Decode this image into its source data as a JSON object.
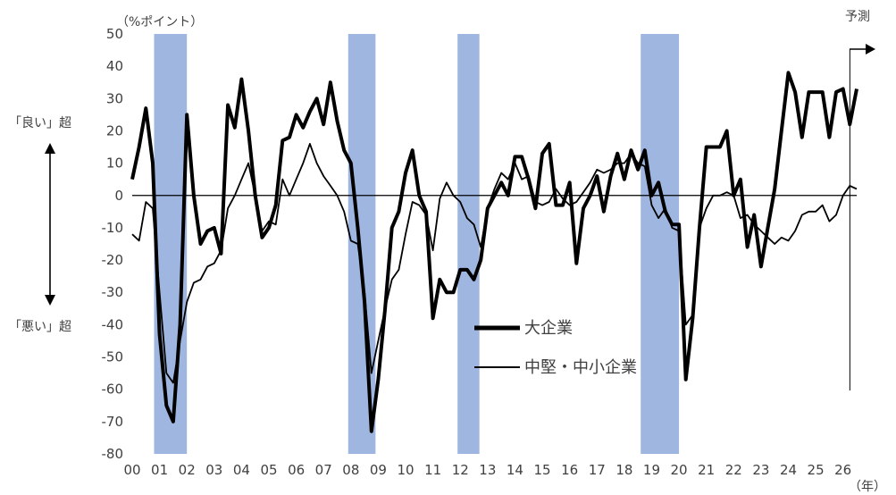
{
  "chart_data": {
    "type": "line",
    "y_unit": "（%ポイント）",
    "x_unit": "（年）",
    "forecast_label": "予測",
    "side_label_top": "「良い」超",
    "side_label_bottom": "「悪い」超",
    "ylim": [
      -80,
      50
    ],
    "y_ticks": [
      50,
      40,
      30,
      20,
      10,
      0,
      -10,
      -20,
      -30,
      -40,
      -50,
      -60,
      -70,
      -80
    ],
    "x_tick_labels": [
      "00",
      "01",
      "02",
      "03",
      "04",
      "05",
      "06",
      "07",
      "08",
      "09",
      "10",
      "11",
      "12",
      "13",
      "14",
      "15",
      "16",
      "17",
      "18",
      "19",
      "20",
      "21",
      "22",
      "23",
      "24",
      "25",
      "26"
    ],
    "recession_shading": [
      [
        0.8,
        2.0
      ],
      [
        7.9,
        8.9
      ],
      [
        11.9,
        12.7
      ],
      [
        18.6,
        20.0
      ]
    ],
    "forecast_start": 26.25,
    "series": [
      {
        "name": "大企業",
        "style": "thick",
        "points": [
          [
            0,
            5
          ],
          [
            0.25,
            15
          ],
          [
            0.5,
            27
          ],
          [
            0.75,
            10
          ],
          [
            1.0,
            -43
          ],
          [
            1.25,
            -65
          ],
          [
            1.5,
            -70
          ],
          [
            1.75,
            -40
          ],
          [
            2.0,
            25
          ],
          [
            2.25,
            0
          ],
          [
            2.5,
            -15
          ],
          [
            2.75,
            -11
          ],
          [
            3.0,
            -10
          ],
          [
            3.25,
            -18
          ],
          [
            3.5,
            28
          ],
          [
            3.75,
            21
          ],
          [
            4.0,
            36
          ],
          [
            4.25,
            20
          ],
          [
            4.5,
            0
          ],
          [
            4.75,
            -13
          ],
          [
            5.0,
            -10
          ],
          [
            5.25,
            -3
          ],
          [
            5.5,
            17
          ],
          [
            5.75,
            18
          ],
          [
            6.0,
            25
          ],
          [
            6.25,
            21
          ],
          [
            6.5,
            26
          ],
          [
            6.75,
            30
          ],
          [
            7.0,
            22
          ],
          [
            7.25,
            35
          ],
          [
            7.5,
            23
          ],
          [
            7.75,
            14
          ],
          [
            8.0,
            10
          ],
          [
            8.25,
            -10
          ],
          [
            8.5,
            -33
          ],
          [
            8.75,
            -73
          ],
          [
            9.0,
            -57
          ],
          [
            9.25,
            -35
          ],
          [
            9.5,
            -10
          ],
          [
            9.75,
            -5
          ],
          [
            10.0,
            7
          ],
          [
            10.25,
            14
          ],
          [
            10.5,
            0
          ],
          [
            10.75,
            -5
          ],
          [
            11.0,
            -38
          ],
          [
            11.25,
            -26
          ],
          [
            11.5,
            -30
          ],
          [
            11.75,
            -30
          ],
          [
            12.0,
            -23
          ],
          [
            12.25,
            -23
          ],
          [
            12.5,
            -26
          ],
          [
            12.75,
            -20
          ],
          [
            13.0,
            -4
          ],
          [
            13.25,
            0
          ],
          [
            13.5,
            4
          ],
          [
            13.75,
            0
          ],
          [
            14.0,
            12
          ],
          [
            14.25,
            12
          ],
          [
            14.5,
            5
          ],
          [
            14.75,
            -4
          ],
          [
            15.0,
            13
          ],
          [
            15.25,
            16
          ],
          [
            15.5,
            -3
          ],
          [
            15.75,
            -3
          ],
          [
            16.0,
            4
          ],
          [
            16.25,
            -21
          ],
          [
            16.5,
            -4
          ],
          [
            16.75,
            0
          ],
          [
            17.0,
            6
          ],
          [
            17.25,
            -5
          ],
          [
            17.5,
            6
          ],
          [
            17.75,
            13
          ],
          [
            18.0,
            5
          ],
          [
            18.25,
            14
          ],
          [
            18.5,
            8
          ],
          [
            18.75,
            14
          ],
          [
            19.0,
            0
          ],
          [
            19.25,
            4
          ],
          [
            19.5,
            -5
          ],
          [
            19.75,
            -9
          ],
          [
            20.0,
            -9
          ],
          [
            20.25,
            -57
          ],
          [
            20.5,
            -38
          ],
          [
            20.75,
            -10
          ],
          [
            21.0,
            15
          ],
          [
            21.25,
            15
          ],
          [
            21.5,
            15
          ],
          [
            21.75,
            20
          ],
          [
            22.0,
            0
          ],
          [
            22.25,
            5
          ],
          [
            22.5,
            -16
          ],
          [
            22.75,
            -6
          ],
          [
            23.0,
            -22
          ],
          [
            23.25,
            -10
          ],
          [
            23.5,
            2
          ],
          [
            23.75,
            20
          ],
          [
            24.0,
            38
          ],
          [
            24.25,
            32
          ],
          [
            24.5,
            18
          ],
          [
            24.75,
            32
          ],
          [
            25.0,
            32
          ],
          [
            25.25,
            32
          ],
          [
            25.5,
            18
          ],
          [
            25.75,
            32
          ],
          [
            26.0,
            33
          ],
          [
            26.25,
            22
          ],
          [
            26.5,
            33
          ]
        ]
      },
      {
        "name": "中堅・中小企業",
        "style": "thin",
        "points": [
          [
            0,
            -12
          ],
          [
            0.25,
            -14
          ],
          [
            0.5,
            -2
          ],
          [
            0.75,
            -4
          ],
          [
            1.0,
            -30
          ],
          [
            1.25,
            -55
          ],
          [
            1.5,
            -58
          ],
          [
            1.75,
            -45
          ],
          [
            2.0,
            -33
          ],
          [
            2.25,
            -27
          ],
          [
            2.5,
            -26
          ],
          [
            2.75,
            -22
          ],
          [
            3.0,
            -21
          ],
          [
            3.25,
            -17
          ],
          [
            3.5,
            -4
          ],
          [
            3.75,
            0
          ],
          [
            4.0,
            5
          ],
          [
            4.25,
            10
          ],
          [
            4.5,
            0
          ],
          [
            4.75,
            -11
          ],
          [
            5.0,
            -8
          ],
          [
            5.25,
            -9
          ],
          [
            5.5,
            5
          ],
          [
            5.75,
            0
          ],
          [
            6.0,
            5
          ],
          [
            6.25,
            10
          ],
          [
            6.5,
            16
          ],
          [
            6.75,
            10
          ],
          [
            7.0,
            6
          ],
          [
            7.25,
            3
          ],
          [
            7.5,
            0
          ],
          [
            7.75,
            -5
          ],
          [
            8.0,
            -14
          ],
          [
            8.25,
            -15
          ],
          [
            8.5,
            -30
          ],
          [
            8.75,
            -55
          ],
          [
            9.0,
            -45
          ],
          [
            9.25,
            -35
          ],
          [
            9.5,
            -26
          ],
          [
            9.75,
            -23
          ],
          [
            10.0,
            -12
          ],
          [
            10.25,
            -2
          ],
          [
            10.5,
            -3
          ],
          [
            10.75,
            -6
          ],
          [
            11.0,
            -17
          ],
          [
            11.25,
            -1
          ],
          [
            11.5,
            4
          ],
          [
            11.75,
            0
          ],
          [
            12.0,
            -2
          ],
          [
            12.25,
            -7
          ],
          [
            12.5,
            -9
          ],
          [
            12.75,
            -16
          ],
          [
            13.0,
            -4
          ],
          [
            13.25,
            2
          ],
          [
            13.5,
            7
          ],
          [
            13.75,
            5
          ],
          [
            14.0,
            10
          ],
          [
            14.25,
            5
          ],
          [
            14.5,
            6
          ],
          [
            14.75,
            -2
          ],
          [
            15.0,
            -3
          ],
          [
            15.25,
            -2
          ],
          [
            15.5,
            2
          ],
          [
            15.75,
            -1
          ],
          [
            16.0,
            -3
          ],
          [
            16.25,
            -2
          ],
          [
            16.5,
            1
          ],
          [
            16.75,
            4
          ],
          [
            17.0,
            8
          ],
          [
            17.25,
            7
          ],
          [
            17.5,
            8
          ],
          [
            17.75,
            10
          ],
          [
            18.0,
            10
          ],
          [
            18.25,
            13
          ],
          [
            18.5,
            10
          ],
          [
            18.75,
            9
          ],
          [
            19.0,
            -3
          ],
          [
            19.25,
            -7
          ],
          [
            19.5,
            -4
          ],
          [
            19.75,
            -10
          ],
          [
            20.0,
            -11
          ],
          [
            20.25,
            -40
          ],
          [
            20.5,
            -37
          ],
          [
            20.75,
            -10
          ],
          [
            21.0,
            -4
          ],
          [
            21.25,
            0
          ],
          [
            21.5,
            0
          ],
          [
            21.75,
            1
          ],
          [
            22.0,
            0
          ],
          [
            22.25,
            -7
          ],
          [
            22.5,
            -6
          ],
          [
            22.75,
            -9
          ],
          [
            23.0,
            -11
          ],
          [
            23.25,
            -13
          ],
          [
            23.5,
            -15
          ],
          [
            23.75,
            -13
          ],
          [
            24.0,
            -14
          ],
          [
            24.25,
            -11
          ],
          [
            24.5,
            -6
          ],
          [
            24.75,
            -5
          ],
          [
            25.0,
            -5
          ],
          [
            25.25,
            -3
          ],
          [
            25.5,
            -8
          ],
          [
            25.75,
            -6
          ],
          [
            26.0,
            0
          ],
          [
            26.25,
            3
          ],
          [
            26.5,
            2
          ]
        ]
      }
    ]
  }
}
